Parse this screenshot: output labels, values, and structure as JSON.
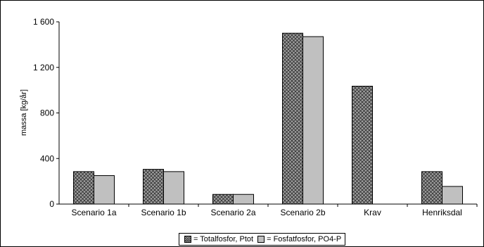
{
  "chart_data": {
    "type": "bar",
    "title": "",
    "xlabel": "",
    "ylabel": "massa [kg/år]",
    "ylim": [
      0,
      1600
    ],
    "yticks": [
      0,
      400,
      800,
      1200,
      1600
    ],
    "ytick_labels": [
      "0",
      "400",
      "800",
      "1 200",
      "1 600"
    ],
    "categories": [
      "Scenario 1a",
      "Scenario 1b",
      "Scenario 2a",
      "Scenario 2b",
      "Krav",
      "Henriksdal"
    ],
    "series": [
      {
        "name": "= Totalfosfor, Ptot",
        "pattern": "crosshatch",
        "color": "#9c9c9c",
        "values": [
          285,
          305,
          85,
          1500,
          1035,
          285
        ]
      },
      {
        "name": "= Fosfatfosfor, PO4-P",
        "pattern": "solid",
        "color": "#c0c0c0",
        "values": [
          250,
          285,
          85,
          1470,
          null,
          155
        ]
      }
    ],
    "grid": false,
    "legend_position": "bottom"
  }
}
